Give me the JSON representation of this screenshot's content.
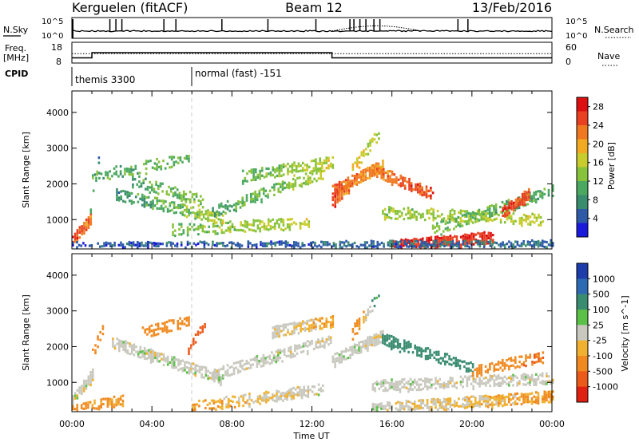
{
  "header": {
    "station": "Kerguelen (fitACF)",
    "beam": "Beam 12",
    "date": "13/Feb/2016"
  },
  "noise_panel": {
    "left_label": "N.Sky",
    "right_label": "N.Search",
    "ytick_top": "10^5",
    "ytick_bottom": "10^0",
    "baseline_level": 0.35,
    "spike_times_h": [
      1.9,
      2.2,
      2.5,
      4.6,
      5.2,
      7.5,
      9.8,
      12.2,
      13.9,
      14.1,
      14.4,
      14.7,
      15.1,
      15.4,
      19.3,
      19.8
    ],
    "search_hump": {
      "start_h": 13.0,
      "peak_h": 15.2,
      "end_h": 17.5,
      "height": 0.25
    }
  },
  "freq_panel": {
    "left_label_1": "Freq.",
    "left_label_2": "[MHz]",
    "right_label": "Nave",
    "yticks_left": [
      "18",
      "8"
    ],
    "yticks_right": [
      "60",
      "0"
    ],
    "freq_steps": [
      {
        "start_h": 0.0,
        "end_h": 1.0,
        "value": 10.5
      },
      {
        "start_h": 1.0,
        "end_h": 13.0,
        "value": 13.0
      },
      {
        "start_h": 13.0,
        "end_h": 24.0,
        "value": 10.5
      }
    ],
    "nave_level": 12.5
  },
  "cpid": {
    "label": "CPID",
    "segments": [
      {
        "start_h": 0.0,
        "label": "themis 3300"
      },
      {
        "start_h": 6.0,
        "label": "normal (fast) -151"
      }
    ]
  },
  "axes": {
    "ylabel": "Slant Range [km]",
    "xlabel": "Time UT",
    "xticks": [
      "00:00",
      "04:00",
      "08:00",
      "12:00",
      "16:00",
      "20:00",
      "00:00"
    ],
    "yticks": [
      "1000",
      "2000",
      "3000",
      "4000"
    ],
    "xlim_h": [
      0,
      24
    ],
    "ylim_km": [
      180,
      4600
    ]
  },
  "colorbars": {
    "power": {
      "label": "Power [dB]",
      "ticks": [
        "4",
        "8",
        "12",
        "16",
        "20",
        "24",
        "28"
      ],
      "colors": [
        "#1a1adc",
        "#2e5aa8",
        "#3a8c6e",
        "#4aa860",
        "#86c23a",
        "#c8cc2c",
        "#f2aa22",
        "#f07820",
        "#e84020",
        "#dc1010"
      ]
    },
    "velocity": {
      "label": "Velocity [m s^-1]",
      "ticks": [
        "1000",
        "500",
        "100",
        "25",
        "-25",
        "-100",
        "-500",
        "-1000"
      ],
      "colors": [
        "#1e3caa",
        "#2e6ab4",
        "#3a8c70",
        "#5ac048",
        "#c8c8be",
        "#f0b030",
        "#f08a20",
        "#ec5a1a",
        "#e02010"
      ]
    }
  },
  "chart_data": [
    {
      "type": "heatmap",
      "title": "Power [dB]",
      "ylabel": "Slant Range [km]",
      "xlabel": "Time UT",
      "xlim_h": [
        0,
        24
      ],
      "ylim_km": [
        180,
        4600
      ],
      "value_range": [
        0,
        30
      ],
      "scatter_bands": [
        {
          "t0": 0.0,
          "t1": 0.9,
          "r0": 400,
          "r1": 1000,
          "v0": 26,
          "v1": 22,
          "density": 0.9
        },
        {
          "t0": 0.9,
          "t1": 1.3,
          "r0": 1400,
          "r1": 2600,
          "v0": 10,
          "v1": 8,
          "density": 0.5
        },
        {
          "t0": 1.0,
          "t1": 5.8,
          "r0": 2200,
          "r1": 2700,
          "v0": 10,
          "v1": 12,
          "density": 0.45
        },
        {
          "t0": 2.2,
          "t1": 7.5,
          "r0": 1700,
          "r1": 1000,
          "v0": 8,
          "v1": 16,
          "density": 0.6
        },
        {
          "t0": 3.0,
          "t1": 6.5,
          "r0": 2100,
          "r1": 1500,
          "v0": 10,
          "v1": 14,
          "density": 0.55
        },
        {
          "t0": 5.0,
          "t1": 11.8,
          "r0": 700,
          "r1": 900,
          "v0": 12,
          "v1": 16,
          "density": 0.5
        },
        {
          "t0": 7.0,
          "t1": 12.5,
          "r0": 1200,
          "r1": 2300,
          "v0": 10,
          "v1": 14,
          "density": 0.55
        },
        {
          "t0": 8.5,
          "t1": 13.0,
          "r0": 2200,
          "r1": 2600,
          "v0": 12,
          "v1": 16,
          "density": 0.6
        },
        {
          "t0": 13.0,
          "t1": 15.5,
          "r0": 1800,
          "r1": 2500,
          "v0": 24,
          "v1": 20,
          "density": 0.85
        },
        {
          "t0": 13.0,
          "t1": 13.8,
          "r0": 1500,
          "r1": 1900,
          "v0": 26,
          "v1": 22,
          "density": 0.9
        },
        {
          "t0": 14.0,
          "t1": 15.3,
          "r0": 2400,
          "r1": 3400,
          "v0": 18,
          "v1": 14,
          "density": 0.5
        },
        {
          "t0": 15.0,
          "t1": 18.0,
          "r0": 2400,
          "r1": 1700,
          "v0": 22,
          "v1": 26,
          "density": 0.7
        },
        {
          "t0": 15.5,
          "t1": 23.5,
          "r0": 1200,
          "r1": 1000,
          "v0": 14,
          "v1": 16,
          "density": 0.55
        },
        {
          "t0": 16.0,
          "t1": 21.0,
          "r0": 250,
          "r1": 500,
          "v0": 28,
          "v1": 26,
          "density": 0.85
        },
        {
          "t0": 18.0,
          "t1": 24.0,
          "r0": 700,
          "r1": 1800,
          "v0": 12,
          "v1": 10,
          "density": 0.5
        },
        {
          "t0": 21.5,
          "t1": 22.8,
          "r0": 1200,
          "r1": 1700,
          "v0": 26,
          "v1": 24,
          "density": 0.85
        },
        {
          "t0": 0.0,
          "t1": 24.0,
          "r0": 200,
          "r1": 260,
          "v0": 4,
          "v1": 6,
          "density": 0.6
        }
      ]
    },
    {
      "type": "heatmap",
      "title": "Velocity [m s^-1]",
      "ylabel": "Slant Range [km]",
      "xlabel": "Time UT",
      "xlim_h": [
        0,
        24
      ],
      "ylim_km": [
        180,
        4600
      ],
      "value_range": [
        -1000,
        1000
      ],
      "scatter_bands": [
        {
          "t0": 0.0,
          "t1": 1.0,
          "r0": 500,
          "r1": 1200,
          "v0": 0,
          "v1": 0,
          "density": 0.9
        },
        {
          "t0": 0.0,
          "t1": 2.5,
          "r0": 200,
          "r1": 500,
          "v0": -100,
          "v1": -60,
          "density": 0.7
        },
        {
          "t0": 1.0,
          "t1": 1.5,
          "r0": 1800,
          "r1": 2500,
          "v0": -300,
          "v1": -200,
          "density": 0.6
        },
        {
          "t0": 2.0,
          "t1": 7.5,
          "r0": 2100,
          "r1": 1100,
          "v0": 0,
          "v1": 0,
          "density": 0.7
        },
        {
          "t0": 3.5,
          "t1": 5.8,
          "r0": 2400,
          "r1": 2700,
          "v0": -150,
          "v1": -100,
          "density": 0.6
        },
        {
          "t0": 5.8,
          "t1": 6.6,
          "r0": 1900,
          "r1": 2600,
          "v0": -700,
          "v1": -500,
          "density": 0.7
        },
        {
          "t0": 6.0,
          "t1": 12.5,
          "r0": 300,
          "r1": 800,
          "v0": -60,
          "v1": 0,
          "density": 0.6
        },
        {
          "t0": 7.0,
          "t1": 13.0,
          "r0": 1200,
          "r1": 2200,
          "v0": 0,
          "v1": 0,
          "density": 0.65
        },
        {
          "t0": 10.0,
          "t1": 13.0,
          "r0": 2400,
          "r1": 2700,
          "v0": 0,
          "v1": -60,
          "density": 0.7
        },
        {
          "t0": 13.0,
          "t1": 15.5,
          "r0": 1600,
          "r1": 2300,
          "v0": 0,
          "v1": 0,
          "density": 0.8
        },
        {
          "t0": 14.0,
          "t1": 15.3,
          "r0": 2400,
          "r1": 3400,
          "v0": -150,
          "v1": 100,
          "density": 0.5
        },
        {
          "t0": 15.5,
          "t1": 20.0,
          "r0": 2200,
          "r1": 1400,
          "v0": 250,
          "v1": 150,
          "density": 0.65
        },
        {
          "t0": 15.0,
          "t1": 24.0,
          "r0": 900,
          "r1": 1100,
          "v0": 0,
          "v1": 0,
          "density": 0.6
        },
        {
          "t0": 15.0,
          "t1": 24.0,
          "r0": 250,
          "r1": 600,
          "v0": 0,
          "v1": -60,
          "density": 0.7
        },
        {
          "t0": 20.0,
          "t1": 23.5,
          "r0": 1300,
          "r1": 1700,
          "v0": -200,
          "v1": -300,
          "density": 0.6
        }
      ]
    }
  ]
}
